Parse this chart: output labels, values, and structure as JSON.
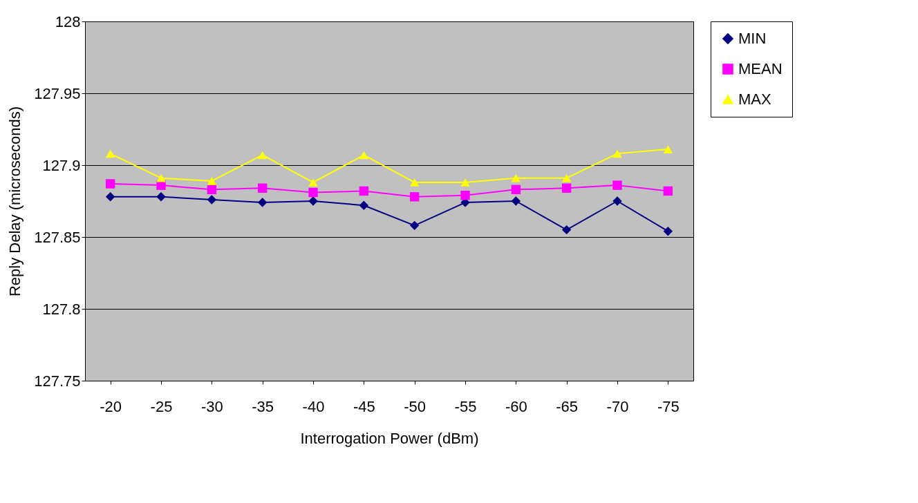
{
  "chart_data": {
    "type": "line",
    "xlabel": "Interrogation Power (dBm)",
    "ylabel": "Reply Delay (microseconds)",
    "categories": [
      "-20",
      "-25",
      "-30",
      "-35",
      "-40",
      "-45",
      "-50",
      "-55",
      "-60",
      "-65",
      "-70",
      "-75"
    ],
    "series": [
      {
        "name": "MIN",
        "color": "#000080",
        "marker": "diamond",
        "values": [
          127.878,
          127.878,
          127.876,
          127.874,
          127.875,
          127.872,
          127.858,
          127.874,
          127.875,
          127.855,
          127.875,
          127.854
        ]
      },
      {
        "name": "MEAN",
        "color": "#ff00ff",
        "marker": "square",
        "values": [
          127.887,
          127.886,
          127.883,
          127.884,
          127.881,
          127.882,
          127.878,
          127.879,
          127.883,
          127.884,
          127.886,
          127.882
        ]
      },
      {
        "name": "MAX",
        "color": "#ffff00",
        "marker": "triangle",
        "values": [
          127.908,
          127.891,
          127.889,
          127.907,
          127.888,
          127.907,
          127.888,
          127.888,
          127.891,
          127.891,
          127.908,
          127.911
        ]
      }
    ],
    "ylim": [
      127.75,
      128
    ],
    "yticks": [
      127.75,
      127.8,
      127.85,
      127.9,
      127.95,
      128
    ],
    "grid": "y",
    "legend": "right",
    "line_style": "solid"
  }
}
